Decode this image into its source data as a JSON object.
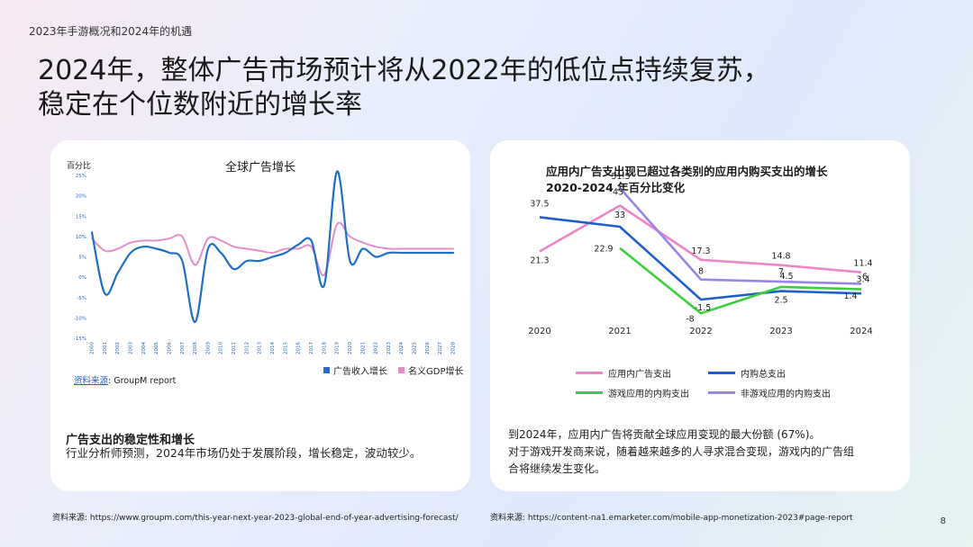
{
  "header": {
    "breadcrumb": "2023年手游概况和2024年的机遇",
    "title_line1": "2024年，整体广告市场预计将从2022年的低位点持续复苏，",
    "title_line2": "稳定在个位数附近的增长率"
  },
  "left_card": {
    "source_label": "资料来源",
    "source_text": ": GroupM report",
    "caption_title": "广告支出的稳定性和增长",
    "caption_body": "行业分析师预测，2024年市场仍处于发展阶段，增长稳定，波动较少。"
  },
  "right_card": {
    "caption_line1": "到2024年，应用内广告将贡献全球应用变现的最大份额 (67%)。",
    "caption_line2": "对于游戏开发商来说，随着越来越多的人寻求混合变现，游戏内的广告组",
    "caption_line3": "合将继续发生变化。"
  },
  "footer": {
    "source_left": "资料来源: https://www.groupm.com/this-year-next-year-2023-global-end-of-year-advertising-forecast/",
    "source_right": "资料来源: https://content-na1.emarketer.com/mobile-app-monetization-2023#page-report",
    "page_number": "8"
  },
  "chart_data": [
    {
      "type": "line",
      "title": "全球广告增长",
      "ylabel": "百分比",
      "ylim": [
        -15,
        25
      ],
      "yticks": [
        "25%",
        "20%",
        "15%",
        "10%",
        "5%",
        "0%",
        "-5%",
        "-10%",
        "-15%"
      ],
      "x": [
        2000,
        2001,
        2002,
        2003,
        2004,
        2005,
        2006,
        2007,
        2008,
        2009,
        2010,
        2011,
        2012,
        2013,
        2014,
        2015,
        2016,
        2017,
        2018,
        2019,
        2020,
        2021,
        2022,
        2023,
        2024,
        2025,
        2026,
        2027,
        2028
      ],
      "xtick_labels": [
        "2000",
        "2001",
        "2002",
        "2003",
        "2004",
        "2005",
        "2006",
        "2007",
        "2008",
        "2009",
        "2010",
        "2011",
        "2012",
        "2013",
        "2014",
        "2015",
        "2016",
        "2017",
        "2018",
        "2019",
        "2020",
        "2021",
        "2022",
        "2023",
        "2024",
        "2025",
        "2026",
        "2027",
        "2028"
      ],
      "legend_position": "bottom-right",
      "series": [
        {
          "name": "广告收入增长",
          "color": "#1f6fc5",
          "values": [
            11,
            -4,
            1,
            6,
            7.5,
            7,
            6,
            4,
            -11,
            7,
            6,
            2,
            4,
            4,
            5,
            6,
            8,
            9,
            -2,
            26,
            4,
            7,
            5,
            6,
            6,
            6,
            6,
            6,
            6
          ]
        },
        {
          "name": "名义GDP增长",
          "color": "#e48fc9",
          "values": [
            9.5,
            6.5,
            7,
            8.5,
            9,
            9,
            9.5,
            10,
            3,
            9.5,
            9,
            7.5,
            7,
            6.5,
            6,
            7,
            7,
            7.5,
            0.5,
            13,
            10,
            8.5,
            7.5,
            7,
            7,
            7,
            7,
            7,
            7
          ]
        }
      ]
    },
    {
      "type": "line",
      "title": "应用内广告支出现已超过各类别的应用内购买支出的增长",
      "subtitle": "2020-2024 年百分比变化",
      "categories": [
        "2020",
        "2021",
        "2022",
        "2023",
        "2024"
      ],
      "legend_position": "bottom",
      "series": [
        {
          "name": "应用内广告支出",
          "color": "#ef84c7",
          "values": [
            21.3,
            43,
            17.3,
            14.8,
            11.4
          ],
          "labels": [
            "21.3",
            "43",
            "17.3",
            "14.8",
            "11.4"
          ]
        },
        {
          "name": "内购总支出",
          "color": "#1f5fcc",
          "values": [
            37.5,
            33,
            -1.5,
            2.5,
            1.4
          ],
          "labels": [
            "37.5",
            "33",
            "-1.5",
            "2.5",
            "1.4"
          ]
        },
        {
          "name": "游戏应用的内购支出",
          "color": "#3dce3d",
          "values": [
            null,
            22.9,
            -8,
            4.5,
            3.4
          ],
          "labels": [
            "",
            "22.9",
            "-8",
            "4.5",
            "3.4"
          ]
        },
        {
          "name": "非游戏应用的内购支出",
          "color": "#9a84e6",
          "values": [
            null,
            51.3,
            8,
            7,
            6
          ],
          "labels": [
            "",
            "51.3",
            "8",
            "7",
            "6"
          ]
        }
      ]
    }
  ]
}
